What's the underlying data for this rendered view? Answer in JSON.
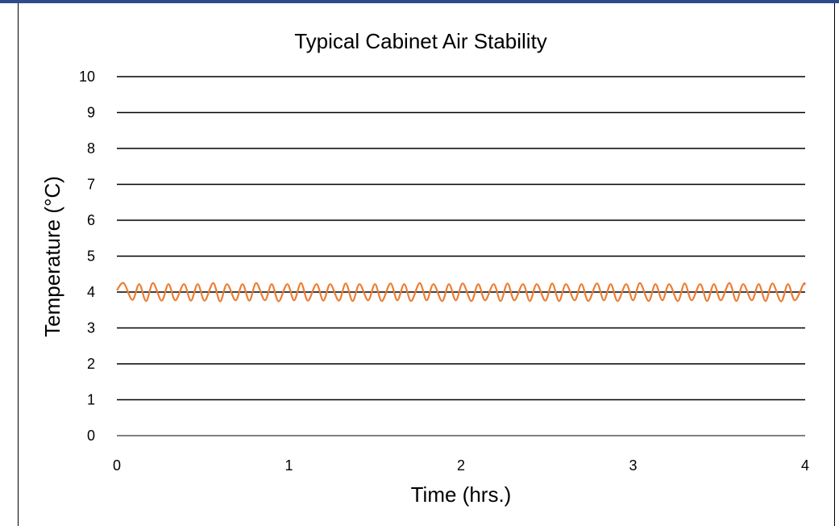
{
  "chart_data": {
    "type": "line",
    "title": "Typical Cabinet Air Stability",
    "xlabel": "Time (hrs.)",
    "ylabel": "Temperature (°C)",
    "xlim": [
      0,
      4
    ],
    "ylim": [
      0,
      10
    ],
    "x_ticks": [
      "0",
      "1",
      "2",
      "3",
      "4"
    ],
    "y_ticks": [
      "0",
      "1",
      "2",
      "3",
      "4",
      "5",
      "6",
      "7",
      "8",
      "9",
      "10"
    ],
    "grid": "horizontal",
    "legend": "none",
    "series": [
      {
        "color": "#ed7d31",
        "x": [
          0,
          0.04,
          0.09,
          0.13,
          0.17,
          0.21,
          0.26,
          0.3,
          0.34,
          0.39,
          0.43,
          0.47,
          0.51,
          0.56,
          0.6,
          0.64,
          0.69,
          0.73,
          0.77,
          0.81,
          0.86,
          0.9,
          0.94,
          0.99,
          1.03,
          1.07,
          1.11,
          1.16,
          1.2,
          1.24,
          1.29,
          1.33,
          1.37,
          1.41,
          1.46,
          1.5,
          1.54,
          1.59,
          1.63,
          1.67,
          1.71,
          1.76,
          1.8,
          1.84,
          1.89,
          1.93,
          1.97,
          2.01,
          2.06,
          2.1,
          2.14,
          2.19,
          2.23,
          2.27,
          2.31,
          2.36,
          2.4,
          2.44,
          2.49,
          2.53,
          2.57,
          2.61,
          2.66,
          2.7,
          2.74,
          2.79,
          2.83,
          2.87,
          2.91,
          2.96,
          3.0,
          3.04,
          3.09,
          3.13,
          3.17,
          3.21,
          3.26,
          3.3,
          3.34,
          3.39,
          3.43,
          3.47,
          3.51,
          3.56,
          3.6,
          3.64,
          3.69,
          3.73,
          3.77,
          3.81,
          3.86,
          3.9,
          3.94,
          3.99,
          4.0
        ],
        "y": [
          4.05,
          4.25,
          3.78,
          4.22,
          3.75,
          4.25,
          3.76,
          4.22,
          3.77,
          4.22,
          3.76,
          4.22,
          3.76,
          4.25,
          3.74,
          4.22,
          3.77,
          4.22,
          3.76,
          4.25,
          3.77,
          4.22,
          3.74,
          4.22,
          3.77,
          4.25,
          3.76,
          4.22,
          3.76,
          4.22,
          3.76,
          4.24,
          3.75,
          4.22,
          3.77,
          4.22,
          3.75,
          4.24,
          3.77,
          4.22,
          3.75,
          4.25,
          3.77,
          4.22,
          3.75,
          4.22,
          3.77,
          4.24,
          3.75,
          4.22,
          3.77,
          4.22,
          3.75,
          4.24,
          3.77,
          4.22,
          3.75,
          4.22,
          3.76,
          4.24,
          3.75,
          4.22,
          3.77,
          4.22,
          3.75,
          4.24,
          3.77,
          4.22,
          3.75,
          4.22,
          3.77,
          4.25,
          3.75,
          4.22,
          3.77,
          4.22,
          3.75,
          4.24,
          3.77,
          4.22,
          3.75,
          4.22,
          3.77,
          4.25,
          3.75,
          4.22,
          3.77,
          4.22,
          3.75,
          4.24,
          3.74,
          4.22,
          3.77,
          4.22,
          4.2
        ]
      }
    ]
  }
}
